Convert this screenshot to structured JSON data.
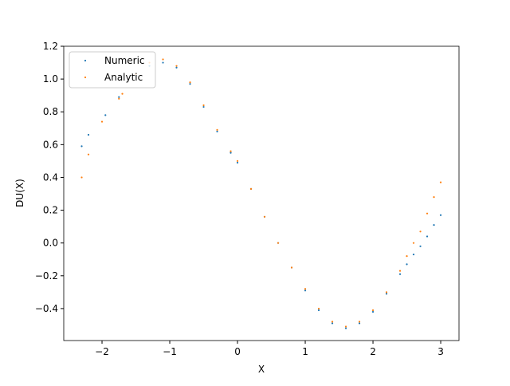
{
  "chart_data": {
    "type": "scatter",
    "xlabel": "X",
    "ylabel": "DU(X)",
    "xlim": [
      -2.565,
      3.27
    ],
    "ylim": [
      -0.595,
      1.2
    ],
    "xticks": [
      {
        "value": -2,
        "label": "−2"
      },
      {
        "value": -1,
        "label": "−1"
      },
      0,
      1,
      2,
      3
    ],
    "yticks": [
      {
        "value": -0.4,
        "label": "−0.4"
      },
      {
        "value": -0.2,
        "label": "−0.2"
      },
      {
        "value": 0,
        "label": "0.0"
      },
      0.2,
      0.4,
      0.6,
      0.8,
      {
        "value": 1,
        "label": "1.0"
      },
      1.2
    ],
    "legend": "upper left",
    "series": [
      {
        "name": "Numeric",
        "color": "#1f77b4",
        "x": [
          -2.3,
          -2.2,
          -1.95,
          -1.75,
          -1.5,
          -1.3,
          -1.1,
          -0.9,
          -0.7,
          -0.5,
          -0.3,
          -0.1,
          0,
          0.2,
          0.4,
          0.6,
          0.8,
          1.0,
          1.2,
          1.4,
          1.6,
          1.8,
          2.0,
          2.2,
          2.4,
          2.5,
          2.6,
          2.7,
          2.8,
          2.9,
          3.0
        ],
        "values": [
          0.59,
          0.66,
          0.78,
          0.89,
          1.02,
          1.08,
          1.1,
          1.07,
          0.97,
          0.83,
          0.68,
          0.55,
          0.49,
          0.33,
          0.16,
          0.0,
          -0.15,
          -0.29,
          -0.41,
          -0.49,
          -0.52,
          -0.49,
          -0.42,
          -0.31,
          -0.19,
          -0.13,
          -0.07,
          -0.02,
          0.04,
          0.11,
          0.17
        ]
      },
      {
        "name": "Analytic",
        "color": "#ff7f0e",
        "x": [
          -2.3,
          -2.2,
          -2.0,
          -1.75,
          -1.7,
          -1.5,
          -1.3,
          -1.1,
          -0.9,
          -0.7,
          -0.5,
          -0.3,
          -0.1,
          0,
          0.2,
          0.4,
          0.6,
          0.8,
          1.0,
          1.2,
          1.4,
          1.6,
          1.8,
          2.0,
          2.2,
          2.4,
          2.5,
          2.6,
          2.7,
          2.8,
          2.9,
          3.0
        ],
        "values": [
          0.4,
          0.54,
          0.74,
          0.88,
          0.91,
          1.03,
          1.1,
          1.12,
          1.08,
          0.98,
          0.84,
          0.69,
          0.56,
          0.5,
          0.33,
          0.16,
          0.0,
          -0.15,
          -0.28,
          -0.4,
          -0.48,
          -0.51,
          -0.48,
          -0.41,
          -0.3,
          -0.17,
          -0.08,
          0.0,
          0.07,
          0.18,
          0.28,
          0.37
        ]
      }
    ]
  }
}
